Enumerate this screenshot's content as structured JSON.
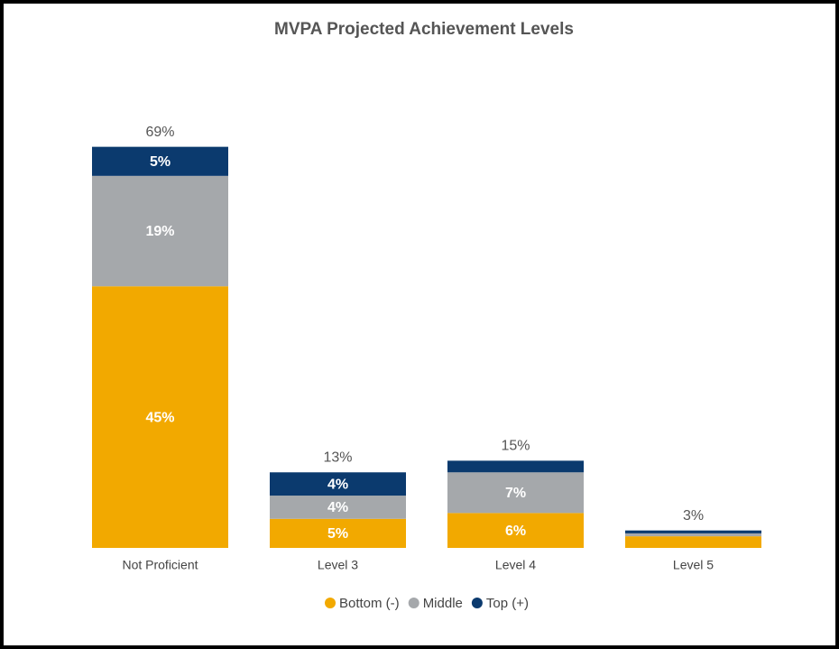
{
  "chart_data": {
    "type": "stacked_bar",
    "title": "MVPA Projected Achievement Levels",
    "categories": [
      "Not Proficient",
      "Level 3",
      "Level 4",
      "Level 5"
    ],
    "series": [
      {
        "name": "Bottom (-)",
        "color": "#f2a900",
        "values": [
          45,
          5,
          6,
          2
        ],
        "value_labels": [
          "45%",
          "5%",
          "6%",
          null
        ]
      },
      {
        "name": "Middle",
        "color": "#a5a8ab",
        "values": [
          19,
          4,
          7,
          0.5
        ],
        "value_labels": [
          "19%",
          "4%",
          "7%",
          null
        ]
      },
      {
        "name": "Top (+)",
        "color": "#0b3a6e",
        "values": [
          5,
          4,
          2,
          0.5
        ],
        "value_labels": [
          "5%",
          "4%",
          null,
          null
        ]
      }
    ],
    "totals": {
      "values": [
        69,
        13,
        15,
        3
      ],
      "value_labels": [
        "69%",
        "13%",
        "15%",
        "3%"
      ]
    },
    "ylim": [
      0,
      75
    ],
    "legend": "bottom"
  }
}
